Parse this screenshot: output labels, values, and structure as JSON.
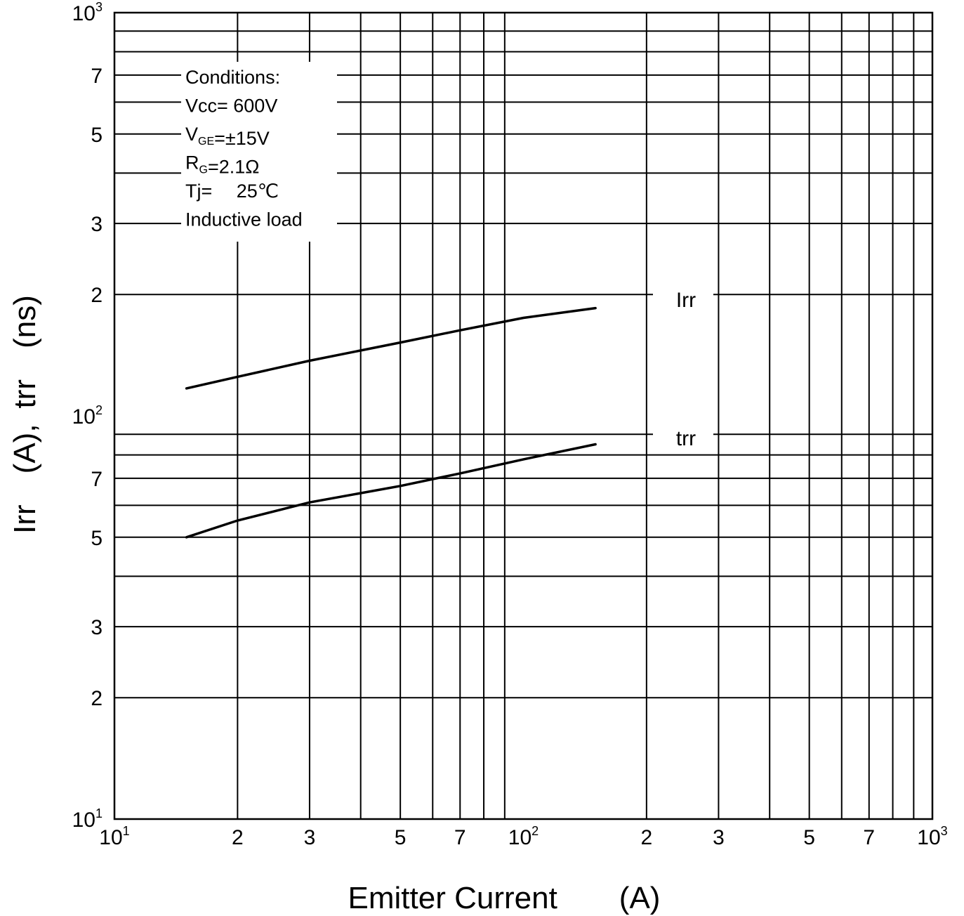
{
  "chart_data": {
    "type": "line",
    "title": "",
    "xlabel": "Emitter Current  (A)",
    "ylabel": "Irr (A), trr (ns)",
    "x_scale": "log",
    "y_scale": "log",
    "xlim": [
      10,
      1000
    ],
    "ylim": [
      10,
      1000
    ],
    "grid": true,
    "x_ticks": [
      {
        "value": 10,
        "base": "10",
        "exp": "1"
      },
      {
        "value": 20,
        "label": "2"
      },
      {
        "value": 30,
        "label": "3"
      },
      {
        "value": 50,
        "label": "5"
      },
      {
        "value": 70,
        "label": "7"
      },
      {
        "value": 100,
        "base": "10",
        "exp": "2"
      },
      {
        "value": 200,
        "label": "2"
      },
      {
        "value": 300,
        "label": "3"
      },
      {
        "value": 500,
        "label": "5"
      },
      {
        "value": 700,
        "label": "7"
      },
      {
        "value": 1000,
        "base": "10",
        "exp": "3"
      }
    ],
    "y_ticks": [
      {
        "value": 10,
        "base": "10",
        "exp": "1"
      },
      {
        "value": 20,
        "label": "2"
      },
      {
        "value": 30,
        "label": "3"
      },
      {
        "value": 50,
        "label": "5"
      },
      {
        "value": 70,
        "label": "7"
      },
      {
        "value": 100,
        "base": "10",
        "exp": "2"
      },
      {
        "value": 200,
        "label": "2"
      },
      {
        "value": 300,
        "label": "3"
      },
      {
        "value": 500,
        "label": "5"
      },
      {
        "value": 700,
        "label": "7"
      },
      {
        "value": 1000,
        "base": "10",
        "exp": "3"
      }
    ],
    "series": [
      {
        "name": "Irr",
        "x": [
          15,
          20,
          30,
          50,
          70,
          100,
          150
        ],
        "y": [
          117,
          125,
          137,
          152,
          163,
          175,
          185
        ]
      },
      {
        "name": "trr",
        "x": [
          15,
          20,
          30,
          50,
          70,
          100,
          150
        ],
        "y": [
          50,
          55,
          61,
          67,
          72,
          78,
          85
        ]
      }
    ],
    "annotations": {
      "conditions": [
        {
          "parts": [
            {
              "t": "Conditions:"
            }
          ]
        },
        {
          "parts": [
            {
              "t": "Vcc= 600V"
            }
          ]
        },
        {
          "parts": [
            {
              "t": "V"
            },
            {
              "t": "GE",
              "sub": true
            },
            {
              "t": "=±15V"
            }
          ]
        },
        {
          "parts": [
            {
              "t": "R"
            },
            {
              "t": "G",
              "sub": true
            },
            {
              "t": "=2.1Ω"
            }
          ]
        },
        {
          "parts": [
            {
              "t": "Tj=  25℃"
            }
          ]
        },
        {
          "parts": [
            {
              "t": "Inductive load"
            }
          ]
        }
      ]
    }
  }
}
